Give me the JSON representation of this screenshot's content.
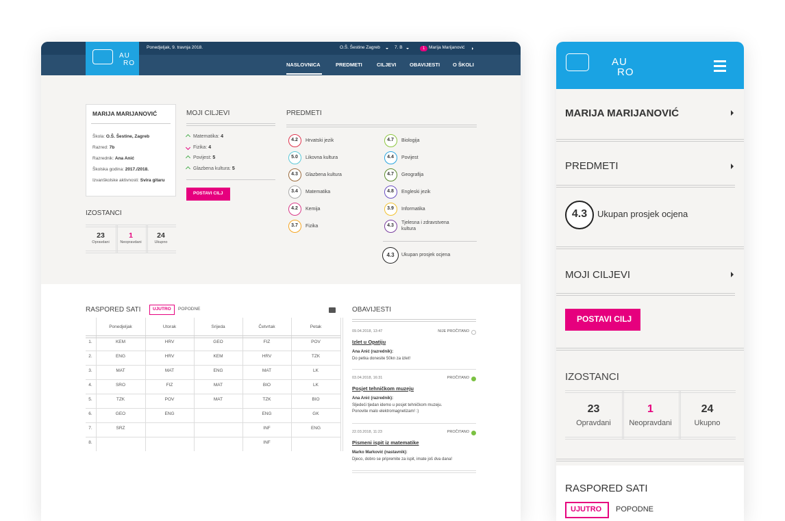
{
  "desktop": {
    "logo": {
      "line1": "AU",
      "line2": "RO"
    },
    "topbar": {
      "date": "Ponedjeljak, 9. travnja 2018.",
      "school": "O.Š. Šestine Zagreb",
      "class": "7. B",
      "badge": "1",
      "user": "Marija Marijanović"
    },
    "nav": [
      "NASLOVNICA",
      "PREDMETI",
      "CILJEVI",
      "OBAVIJESTI",
      "O ŠKOLI"
    ],
    "profile": {
      "name": "MARIJA MARIJANOVIĆ",
      "fields": [
        {
          "label": "Škola:",
          "value": "O.Š. Šestine, Zagreb"
        },
        {
          "label": "Razred:",
          "value": "7b"
        },
        {
          "label": "Razrednik:",
          "value": "Ana Anić"
        },
        {
          "label": "Školska godina:",
          "value": "2017./2018."
        },
        {
          "label": "Izvanškolske aktivnosti:",
          "value": "Svira gitaru"
        }
      ]
    },
    "absences": {
      "title": "IZOSTANCI",
      "items": [
        {
          "value": 23,
          "label": "Opravdani"
        },
        {
          "value": 1,
          "label": "Neopravdani"
        },
        {
          "value": 24,
          "label": "Ukupno"
        }
      ]
    },
    "goals": {
      "title": "MOJI CILJEVI",
      "button": "POSTAVI CILJ",
      "items": [
        {
          "subject": "Matematika:",
          "grade": 4,
          "trend": "up"
        },
        {
          "subject": "Fizika:",
          "grade": 4,
          "trend": "down"
        },
        {
          "subject": "Povijest:",
          "grade": 5,
          "trend": "up"
        },
        {
          "subject": "Glazbena kultura:",
          "grade": 5,
          "trend": "up"
        }
      ]
    },
    "subjects": {
      "title": "PREDMETI",
      "items": [
        {
          "name": "Hrvatski jezik",
          "grade": "4.2",
          "color": "#e0344e"
        },
        {
          "name": "Likovna kultura",
          "grade": "5.0",
          "color": "#5bc8d8"
        },
        {
          "name": "Glazbena kultura",
          "grade": "4.3",
          "color": "#9b6a3c"
        },
        {
          "name": "Matematika",
          "grade": "3.4",
          "color": "#aaaaaa"
        },
        {
          "name": "Kemija",
          "grade": "4.2",
          "color": "#d93a8a"
        },
        {
          "name": "Fizika",
          "grade": "3.7",
          "color": "#f5a623"
        },
        {
          "name": "Biologija",
          "grade": "4.7",
          "color": "#8dc63f"
        },
        {
          "name": "Povijest",
          "grade": "4.4",
          "color": "#2aa5e0"
        },
        {
          "name": "Geografija",
          "grade": "4.7",
          "color": "#5a8a2a"
        },
        {
          "name": "Engleski jezik",
          "grade": "4.8",
          "color": "#6a4fc2"
        },
        {
          "name": "Informatika",
          "grade": "3.9",
          "color": "#f2c12e"
        },
        {
          "name": "Tjelesna i zdravstvena kultura",
          "grade": "4.3",
          "color": "#7b3fa0"
        }
      ],
      "average": {
        "grade": "4.3",
        "label": "Ukupan prosjek ocjena"
      }
    },
    "schedule": {
      "title": "RASPORED SATI",
      "tabs": [
        "UJUTRO",
        "POPODNE"
      ],
      "days": [
        "Ponedjeljak",
        "Utorak",
        "Srijeda",
        "Četvrtak",
        "Petak"
      ],
      "rows": [
        [
          "1.",
          "KEM",
          "HRV",
          "GEO",
          "FIZ",
          "POV"
        ],
        [
          "2.",
          "ENG",
          "HRV",
          "KEM",
          "HRV",
          "TZK"
        ],
        [
          "3.",
          "MAT",
          "MAT",
          "ENG",
          "MAT",
          "LK"
        ],
        [
          "4.",
          "SRO",
          "FIZ",
          "MAT",
          "BIO",
          "LK"
        ],
        [
          "5.",
          "TZK",
          "POV",
          "MAT",
          "TZK",
          "BIO"
        ],
        [
          "6.",
          "GEO",
          "ENG",
          null,
          "ENG",
          "GK"
        ],
        [
          "7.",
          "SRZ",
          null,
          null,
          "INF",
          "ENG"
        ],
        [
          "8.",
          null,
          null,
          null,
          "INF",
          null
        ]
      ]
    },
    "notices": {
      "title": "OBAVIJESTI",
      "items": [
        {
          "date": "09.04.2018, 13:47",
          "status": "NIJE PROČITANO",
          "read": false,
          "title": "Izlet u Opatiju",
          "author": "Ana Anić (razrednik):",
          "text": [
            "Do petka donesite 50kn za izlet!"
          ]
        },
        {
          "date": "03.04.2018, 16:31",
          "status": "PROČITANO",
          "read": true,
          "title": "Posjet tehničkom muzeju",
          "author": "Ana Anić (razrednik):",
          "text": [
            "Sljedeći tjedan idemo u posjet tehničkom muzeju.",
            "Ponovite malo elektromagnetizam! :)"
          ]
        },
        {
          "date": "22.03.2018, 11:23",
          "status": "PROČITANO",
          "read": true,
          "title": "Pismeni ispit iz matematike",
          "author": "Marko Marković (nastavnik):",
          "text": [
            "Djeco, dobro se pripremite za ispit, imate još dva dana!"
          ]
        }
      ]
    }
  },
  "mobile": {
    "logo": {
      "line1": "AU",
      "line2": "RO"
    },
    "name": "MARIJA MARIJANOVIĆ",
    "subjects": "PREDMETI",
    "average": {
      "grade": "4.3",
      "label": "Ukupan prosjek ocjena"
    },
    "goals": "MOJI CILJEVI",
    "button": "POSTAVI CILJ",
    "absences": {
      "title": "IZOSTANCI",
      "items": [
        {
          "value": 23,
          "label": "Opravdani"
        },
        {
          "value": 1,
          "label": "Neopravdani"
        },
        {
          "value": 24,
          "label": "Ukupno"
        }
      ]
    },
    "schedule": {
      "title": "RASPORED SATI",
      "tabs": [
        "UJUTRO",
        "POPODNE"
      ]
    }
  }
}
